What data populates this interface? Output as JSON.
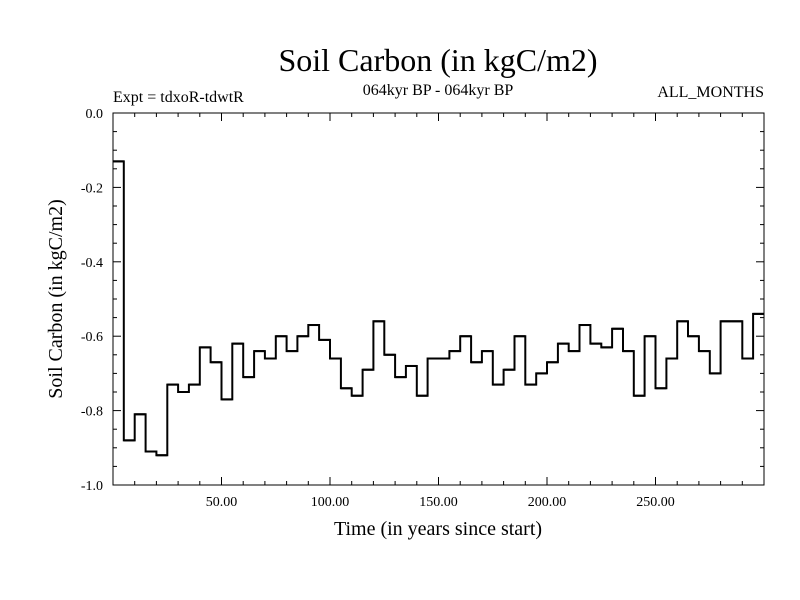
{
  "chart_data": {
    "type": "line",
    "step": true,
    "title": "Soil Carbon (in kgC/m2)",
    "subtitle": "064kyr BP - 064kyr BP",
    "experiment": "Expt = tdxoR-tdwtR",
    "season": "ALL_MONTHS",
    "xlabel": "Time (in years since start)",
    "ylabel": "Soil Carbon (in kgC/m2)",
    "xlim": [
      0,
      300
    ],
    "ylim": [
      -1.0,
      0.0
    ],
    "xticks": [
      50,
      100,
      150,
      200,
      250
    ],
    "xtick_labels": [
      "50.00",
      "100.00",
      "150.00",
      "200.00",
      "250.00"
    ],
    "yticks": [
      0.0,
      -0.2,
      -0.4,
      -0.6,
      -0.8,
      -1.0
    ],
    "ytick_labels": [
      "0.0",
      "-0.2",
      "-0.4",
      "-0.6",
      "-0.8",
      "-1.0"
    ],
    "line_color": "#000000",
    "series": [
      {
        "bin_width": 5,
        "x_start": 0,
        "values": [
          -0.13,
          -0.88,
          -0.81,
          -0.91,
          -0.92,
          -0.73,
          -0.75,
          -0.73,
          -0.63,
          -0.67,
          -0.77,
          -0.62,
          -0.71,
          -0.64,
          -0.66,
          -0.6,
          -0.64,
          -0.6,
          -0.57,
          -0.61,
          -0.66,
          -0.74,
          -0.76,
          -0.69,
          -0.56,
          -0.65,
          -0.71,
          -0.68,
          -0.76,
          -0.66,
          -0.66,
          -0.64,
          -0.6,
          -0.67,
          -0.64,
          -0.73,
          -0.69,
          -0.6,
          -0.73,
          -0.7,
          -0.67,
          -0.62,
          -0.64,
          -0.57,
          -0.62,
          -0.63,
          -0.58,
          -0.64,
          -0.76,
          -0.6,
          -0.74,
          -0.66,
          -0.56,
          -0.6,
          -0.64,
          -0.7,
          -0.56,
          -0.56,
          -0.66,
          -0.54
        ]
      }
    ]
  }
}
